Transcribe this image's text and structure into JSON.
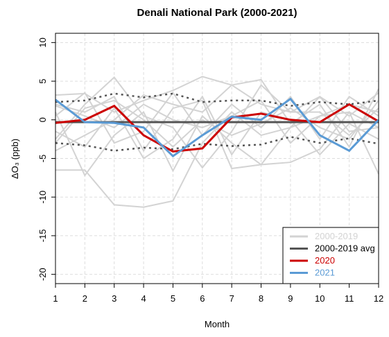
{
  "chart_data": {
    "type": "line",
    "title": "Denali National Park (2000-2021)",
    "x_label": "Month",
    "y_label": "ΔO₃ (ppb)",
    "x": [
      1,
      2,
      3,
      4,
      5,
      6,
      7,
      8,
      9,
      10,
      11,
      12
    ],
    "xlim": [
      1,
      12
    ],
    "xticks": [
      1,
      2,
      3,
      4,
      5,
      6,
      7,
      8,
      9,
      10,
      11,
      12
    ],
    "ylim": [
      -21.2,
      11.2
    ],
    "yticks": [
      -20,
      -15,
      -10,
      -5,
      0,
      5,
      10
    ],
    "grid": true,
    "legend": "bottom-right",
    "background_lines": {
      "name": "2000-2019",
      "color": "#d3d3d3",
      "values": [
        [
          -6.5,
          -6.5,
          -11,
          -11.3,
          -10.5,
          -3,
          1,
          -2,
          -1,
          0.5,
          1,
          -1
        ],
        [
          3.2,
          3.4,
          1,
          2.5,
          3.8,
          5.6,
          4.5,
          2,
          1,
          3,
          0.5,
          3.5
        ],
        [
          1,
          -7.2,
          -2,
          1,
          -6.6,
          0.5,
          -3,
          -5.8,
          -5.5,
          -3.8,
          1,
          -7
        ],
        [
          -2.5,
          2,
          5.5,
          0.5,
          -1,
          -6.2,
          -1.5,
          4.5,
          1,
          1,
          -2,
          1.5
        ],
        [
          2,
          1,
          3,
          -4,
          1.5,
          2.5,
          -6.3,
          -5.8,
          -1,
          3,
          -1.5,
          -1
        ],
        [
          -4,
          -2,
          0,
          3.2,
          2,
          1,
          4.5,
          5.2,
          -0.5,
          2,
          -3.5,
          4
        ],
        [
          0.5,
          3.5,
          -3,
          -1.5,
          3.5,
          -2,
          2,
          -1,
          3,
          -2.5,
          3,
          0.5
        ],
        [
          -1.5,
          -3.5,
          1.5,
          -5,
          -2.5,
          3,
          -4.5,
          1,
          0,
          -4.5,
          -0.5,
          -2.5
        ],
        [
          1.8,
          0.5,
          -1,
          2,
          0,
          -1,
          0.5,
          2.5,
          -3,
          0.5,
          2,
          1
        ],
        [
          -3,
          1.5,
          2.5,
          0,
          -3.5,
          0,
          -2,
          -0.5,
          1.5,
          -1,
          -2.5,
          2.5
        ]
      ]
    },
    "series": [
      {
        "name": "2000-2019 avg",
        "color": "#555555",
        "values": [
          -0.3,
          -0.3,
          -0.3,
          -0.3,
          -0.3,
          -0.3,
          -0.3,
          -0.3,
          -0.3,
          -0.3,
          -0.3,
          -0.3
        ]
      },
      {
        "name": "2020",
        "color": "#cc0000",
        "values": [
          -0.4,
          0,
          1.8,
          -2,
          -4.1,
          -3.7,
          0.3,
          0.8,
          0,
          -0.3,
          2,
          -0.2
        ]
      },
      {
        "name": "2021",
        "color": "#5b9bd5",
        "values": [
          2.6,
          -0.3,
          -0.4,
          -1,
          -4.7,
          -2,
          0.4,
          0,
          2.7,
          -2,
          -4,
          0
        ]
      }
    ],
    "bounds": {
      "color": "#555555",
      "values": [
        [
          2.3,
          2.5,
          3.4,
          2.9,
          3.4,
          2.3,
          2.5,
          2.5,
          1.8,
          2.3,
          2.0,
          2.5
        ],
        [
          -3,
          -3.3,
          -4,
          -3.6,
          -3.8,
          -3.1,
          -3.4,
          -3.2,
          -2.2,
          -3,
          -2.4,
          -3.1
        ]
      ]
    }
  }
}
